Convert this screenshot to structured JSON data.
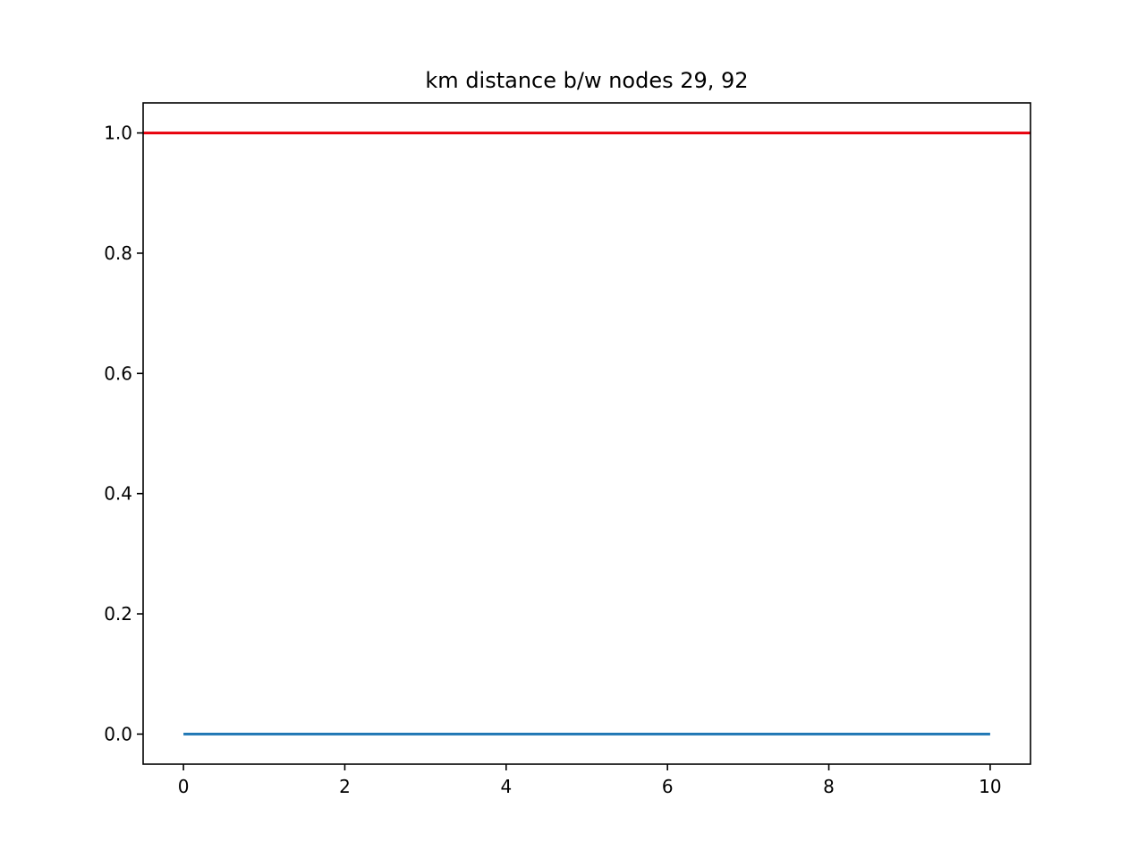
{
  "chart_data": {
    "type": "line",
    "title": "km distance b/w nodes 29, 92",
    "xlabel": "",
    "ylabel": "",
    "xlim": [
      -0.5,
      10.5
    ],
    "ylim": [
      -0.05,
      1.05
    ],
    "xticks": [
      0,
      2,
      4,
      6,
      8,
      10
    ],
    "xtick_labels": [
      "0",
      "2",
      "4",
      "6",
      "8",
      "10"
    ],
    "yticks": [
      0.0,
      0.2,
      0.4,
      0.6,
      0.8,
      1.0
    ],
    "ytick_labels": [
      "0.0",
      "0.2",
      "0.4",
      "0.6",
      "0.8",
      "1.0"
    ],
    "grid": false,
    "series": [
      {
        "x": [
          0,
          1,
          2,
          3,
          4,
          5,
          6,
          7,
          8,
          9,
          10
        ],
        "y": [
          0,
          0,
          0,
          0,
          0,
          0,
          0,
          0,
          0,
          0,
          0
        ],
        "color": "#1f77b4"
      }
    ],
    "hlines": [
      {
        "y": 1.0,
        "color": "#e8000b"
      }
    ]
  }
}
